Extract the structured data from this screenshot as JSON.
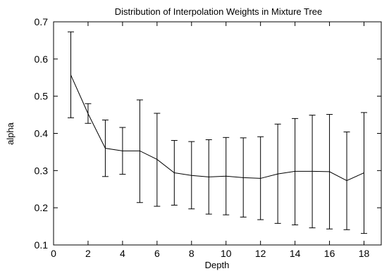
{
  "chart_data": {
    "type": "line",
    "title": "Distribution of Interpolation Weights in Mixture Tree",
    "xlabel": "Depth",
    "ylabel": "alpha",
    "xlim": [
      0,
      19
    ],
    "ylim": [
      0.1,
      0.7
    ],
    "xticks": [
      0,
      2,
      4,
      6,
      8,
      10,
      12,
      14,
      16,
      18
    ],
    "yticks": [
      0.1,
      0.2,
      0.3,
      0.4,
      0.5,
      0.6,
      0.7
    ],
    "xtick_labels": [
      "0",
      "2",
      "4",
      "6",
      "8",
      "10",
      "12",
      "14",
      "16",
      "18"
    ],
    "ytick_labels": [
      "0.1",
      "0.2",
      "0.3",
      "0.4",
      "0.5",
      "0.6",
      "0.7"
    ],
    "grid": false,
    "legend": "none",
    "line_color": "#000000",
    "series": [
      {
        "x": [
          1,
          2,
          3,
          4,
          5,
          6,
          7,
          8,
          9,
          10,
          11,
          12,
          13,
          14,
          15,
          16,
          17,
          18
        ],
        "y": [
          0.557,
          0.453,
          0.36,
          0.353,
          0.353,
          0.33,
          0.294,
          0.287,
          0.283,
          0.285,
          0.281,
          0.279,
          0.291,
          0.298,
          0.298,
          0.297,
          0.273,
          0.294
        ],
        "y_low": [
          0.442,
          0.427,
          0.284,
          0.29,
          0.214,
          0.204,
          0.207,
          0.197,
          0.183,
          0.181,
          0.175,
          0.168,
          0.158,
          0.154,
          0.146,
          0.143,
          0.141,
          0.131
        ],
        "y_high": [
          0.673,
          0.48,
          0.436,
          0.416,
          0.49,
          0.454,
          0.381,
          0.378,
          0.383,
          0.389,
          0.388,
          0.391,
          0.425,
          0.44,
          0.449,
          0.451,
          0.404,
          0.456
        ]
      }
    ]
  }
}
